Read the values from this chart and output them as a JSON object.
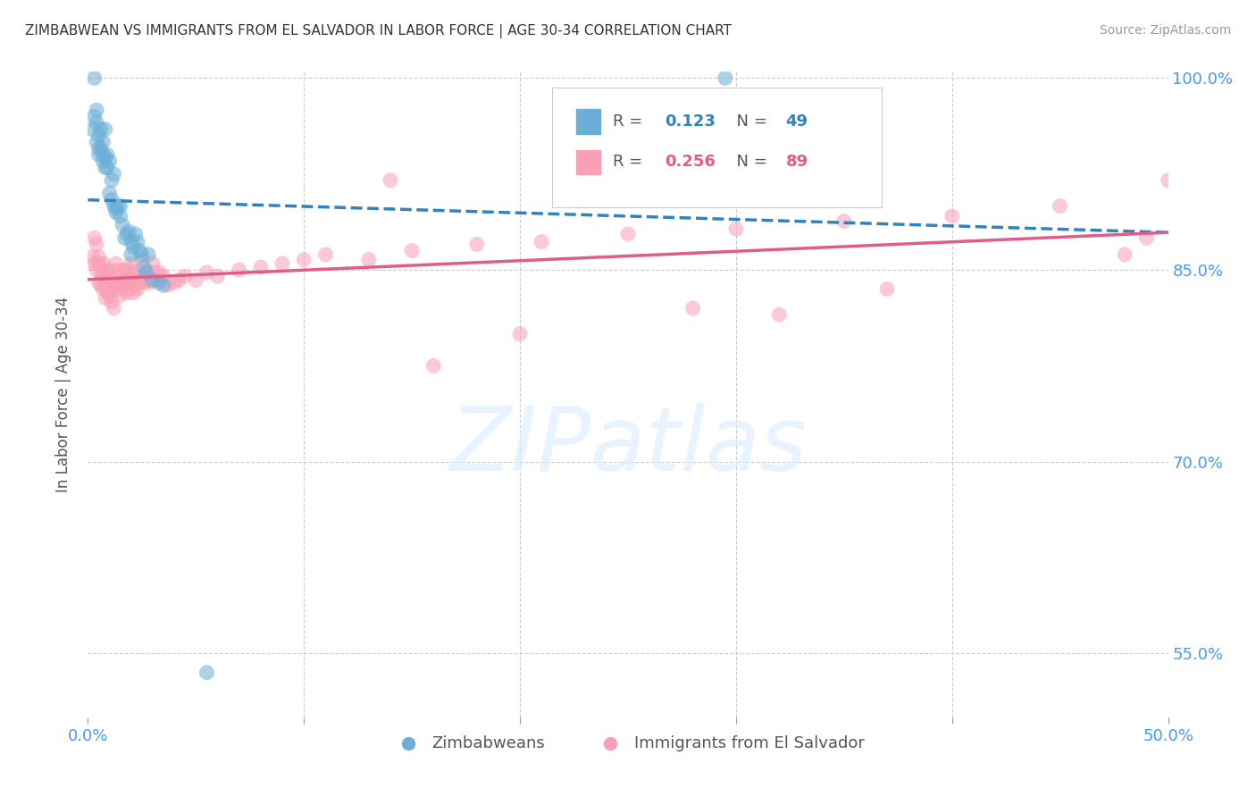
{
  "title": "ZIMBABWEAN VS IMMIGRANTS FROM EL SALVADOR IN LABOR FORCE | AGE 30-34 CORRELATION CHART",
  "source": "Source: ZipAtlas.com",
  "ylabel_left": "In Labor Force | Age 30-34",
  "x_min": 0.0,
  "x_max": 0.5,
  "y_min": 0.5,
  "y_max": 1.005,
  "y_ticks": [
    0.5,
    0.55,
    0.6,
    0.65,
    0.7,
    0.75,
    0.8,
    0.85,
    0.9,
    0.95,
    1.0
  ],
  "y_tick_labels": [
    "",
    "55.0%",
    "",
    "",
    "70.0%",
    "",
    "",
    "85.0%",
    "",
    "",
    "100.0%"
  ],
  "x_tick_positions": [
    0.0,
    0.1,
    0.2,
    0.3,
    0.4,
    0.5
  ],
  "x_tick_labels": [
    "0.0%",
    "",
    "",
    "",
    "",
    "50.0%"
  ],
  "legend_label1": "Zimbabweans",
  "legend_label2": "Immigrants from El Salvador",
  "R1": 0.123,
  "N1": 49,
  "R2": 0.256,
  "N2": 89,
  "color1": "#6baed6",
  "color2": "#fa9fb5",
  "trendline1_color": "#3182bd",
  "trendline2_color": "#e05c8a",
  "watermark": "ZIPatlas",
  "blue_scatter_x": [
    0.002,
    0.003,
    0.003,
    0.004,
    0.004,
    0.004,
    0.005,
    0.005,
    0.005,
    0.006,
    0.006,
    0.007,
    0.007,
    0.007,
    0.008,
    0.008,
    0.008,
    0.009,
    0.009,
    0.01,
    0.01,
    0.011,
    0.011,
    0.012,
    0.012,
    0.013,
    0.013,
    0.014,
    0.015,
    0.015,
    0.016,
    0.017,
    0.018,
    0.019,
    0.02,
    0.02,
    0.021,
    0.022,
    0.023,
    0.024,
    0.025,
    0.026,
    0.027,
    0.028,
    0.03,
    0.033,
    0.035,
    0.295,
    0.055
  ],
  "blue_scatter_y": [
    0.96,
    1.0,
    0.97,
    0.975,
    0.95,
    0.965,
    0.945,
    0.955,
    0.94,
    0.96,
    0.945,
    0.94,
    0.95,
    0.935,
    0.938,
    0.96,
    0.93,
    0.94,
    0.93,
    0.935,
    0.91,
    0.92,
    0.905,
    0.925,
    0.9,
    0.898,
    0.895,
    0.9,
    0.892,
    0.9,
    0.885,
    0.875,
    0.878,
    0.88,
    0.872,
    0.862,
    0.868,
    0.878,
    0.872,
    0.865,
    0.862,
    0.852,
    0.848,
    0.862,
    0.842,
    0.84,
    0.838,
    1.0,
    0.535
  ],
  "pink_scatter_x": [
    0.002,
    0.003,
    0.003,
    0.004,
    0.004,
    0.005,
    0.005,
    0.005,
    0.006,
    0.006,
    0.007,
    0.007,
    0.007,
    0.008,
    0.008,
    0.008,
    0.009,
    0.009,
    0.01,
    0.01,
    0.01,
    0.011,
    0.011,
    0.012,
    0.012,
    0.013,
    0.013,
    0.014,
    0.014,
    0.015,
    0.015,
    0.015,
    0.016,
    0.017,
    0.017,
    0.018,
    0.018,
    0.019,
    0.019,
    0.02,
    0.02,
    0.021,
    0.021,
    0.022,
    0.022,
    0.023,
    0.023,
    0.024,
    0.025,
    0.025,
    0.026,
    0.027,
    0.028,
    0.029,
    0.03,
    0.031,
    0.032,
    0.033,
    0.035,
    0.037,
    0.04,
    0.042,
    0.045,
    0.05,
    0.055,
    0.06,
    0.07,
    0.08,
    0.09,
    0.1,
    0.11,
    0.13,
    0.15,
    0.18,
    0.21,
    0.25,
    0.3,
    0.35,
    0.4,
    0.45,
    0.14,
    0.16,
    0.2,
    0.28,
    0.32,
    0.37,
    0.48,
    0.5,
    0.49
  ],
  "pink_scatter_y": [
    0.86,
    0.875,
    0.855,
    0.87,
    0.85,
    0.86,
    0.84,
    0.855,
    0.848,
    0.838,
    0.855,
    0.845,
    0.835,
    0.85,
    0.84,
    0.828,
    0.848,
    0.832,
    0.842,
    0.85,
    0.83,
    0.84,
    0.825,
    0.835,
    0.82,
    0.855,
    0.84,
    0.85,
    0.835,
    0.845,
    0.84,
    0.83,
    0.84,
    0.838,
    0.85,
    0.842,
    0.832,
    0.85,
    0.835,
    0.855,
    0.845,
    0.842,
    0.832,
    0.848,
    0.838,
    0.842,
    0.835,
    0.84,
    0.858,
    0.845,
    0.84,
    0.848,
    0.842,
    0.84,
    0.855,
    0.848,
    0.842,
    0.848,
    0.845,
    0.838,
    0.84,
    0.842,
    0.845,
    0.842,
    0.848,
    0.845,
    0.85,
    0.852,
    0.855,
    0.858,
    0.862,
    0.858,
    0.865,
    0.87,
    0.872,
    0.878,
    0.882,
    0.888,
    0.892,
    0.9,
    0.92,
    0.775,
    0.8,
    0.82,
    0.815,
    0.835,
    0.862,
    0.92,
    0.875
  ]
}
